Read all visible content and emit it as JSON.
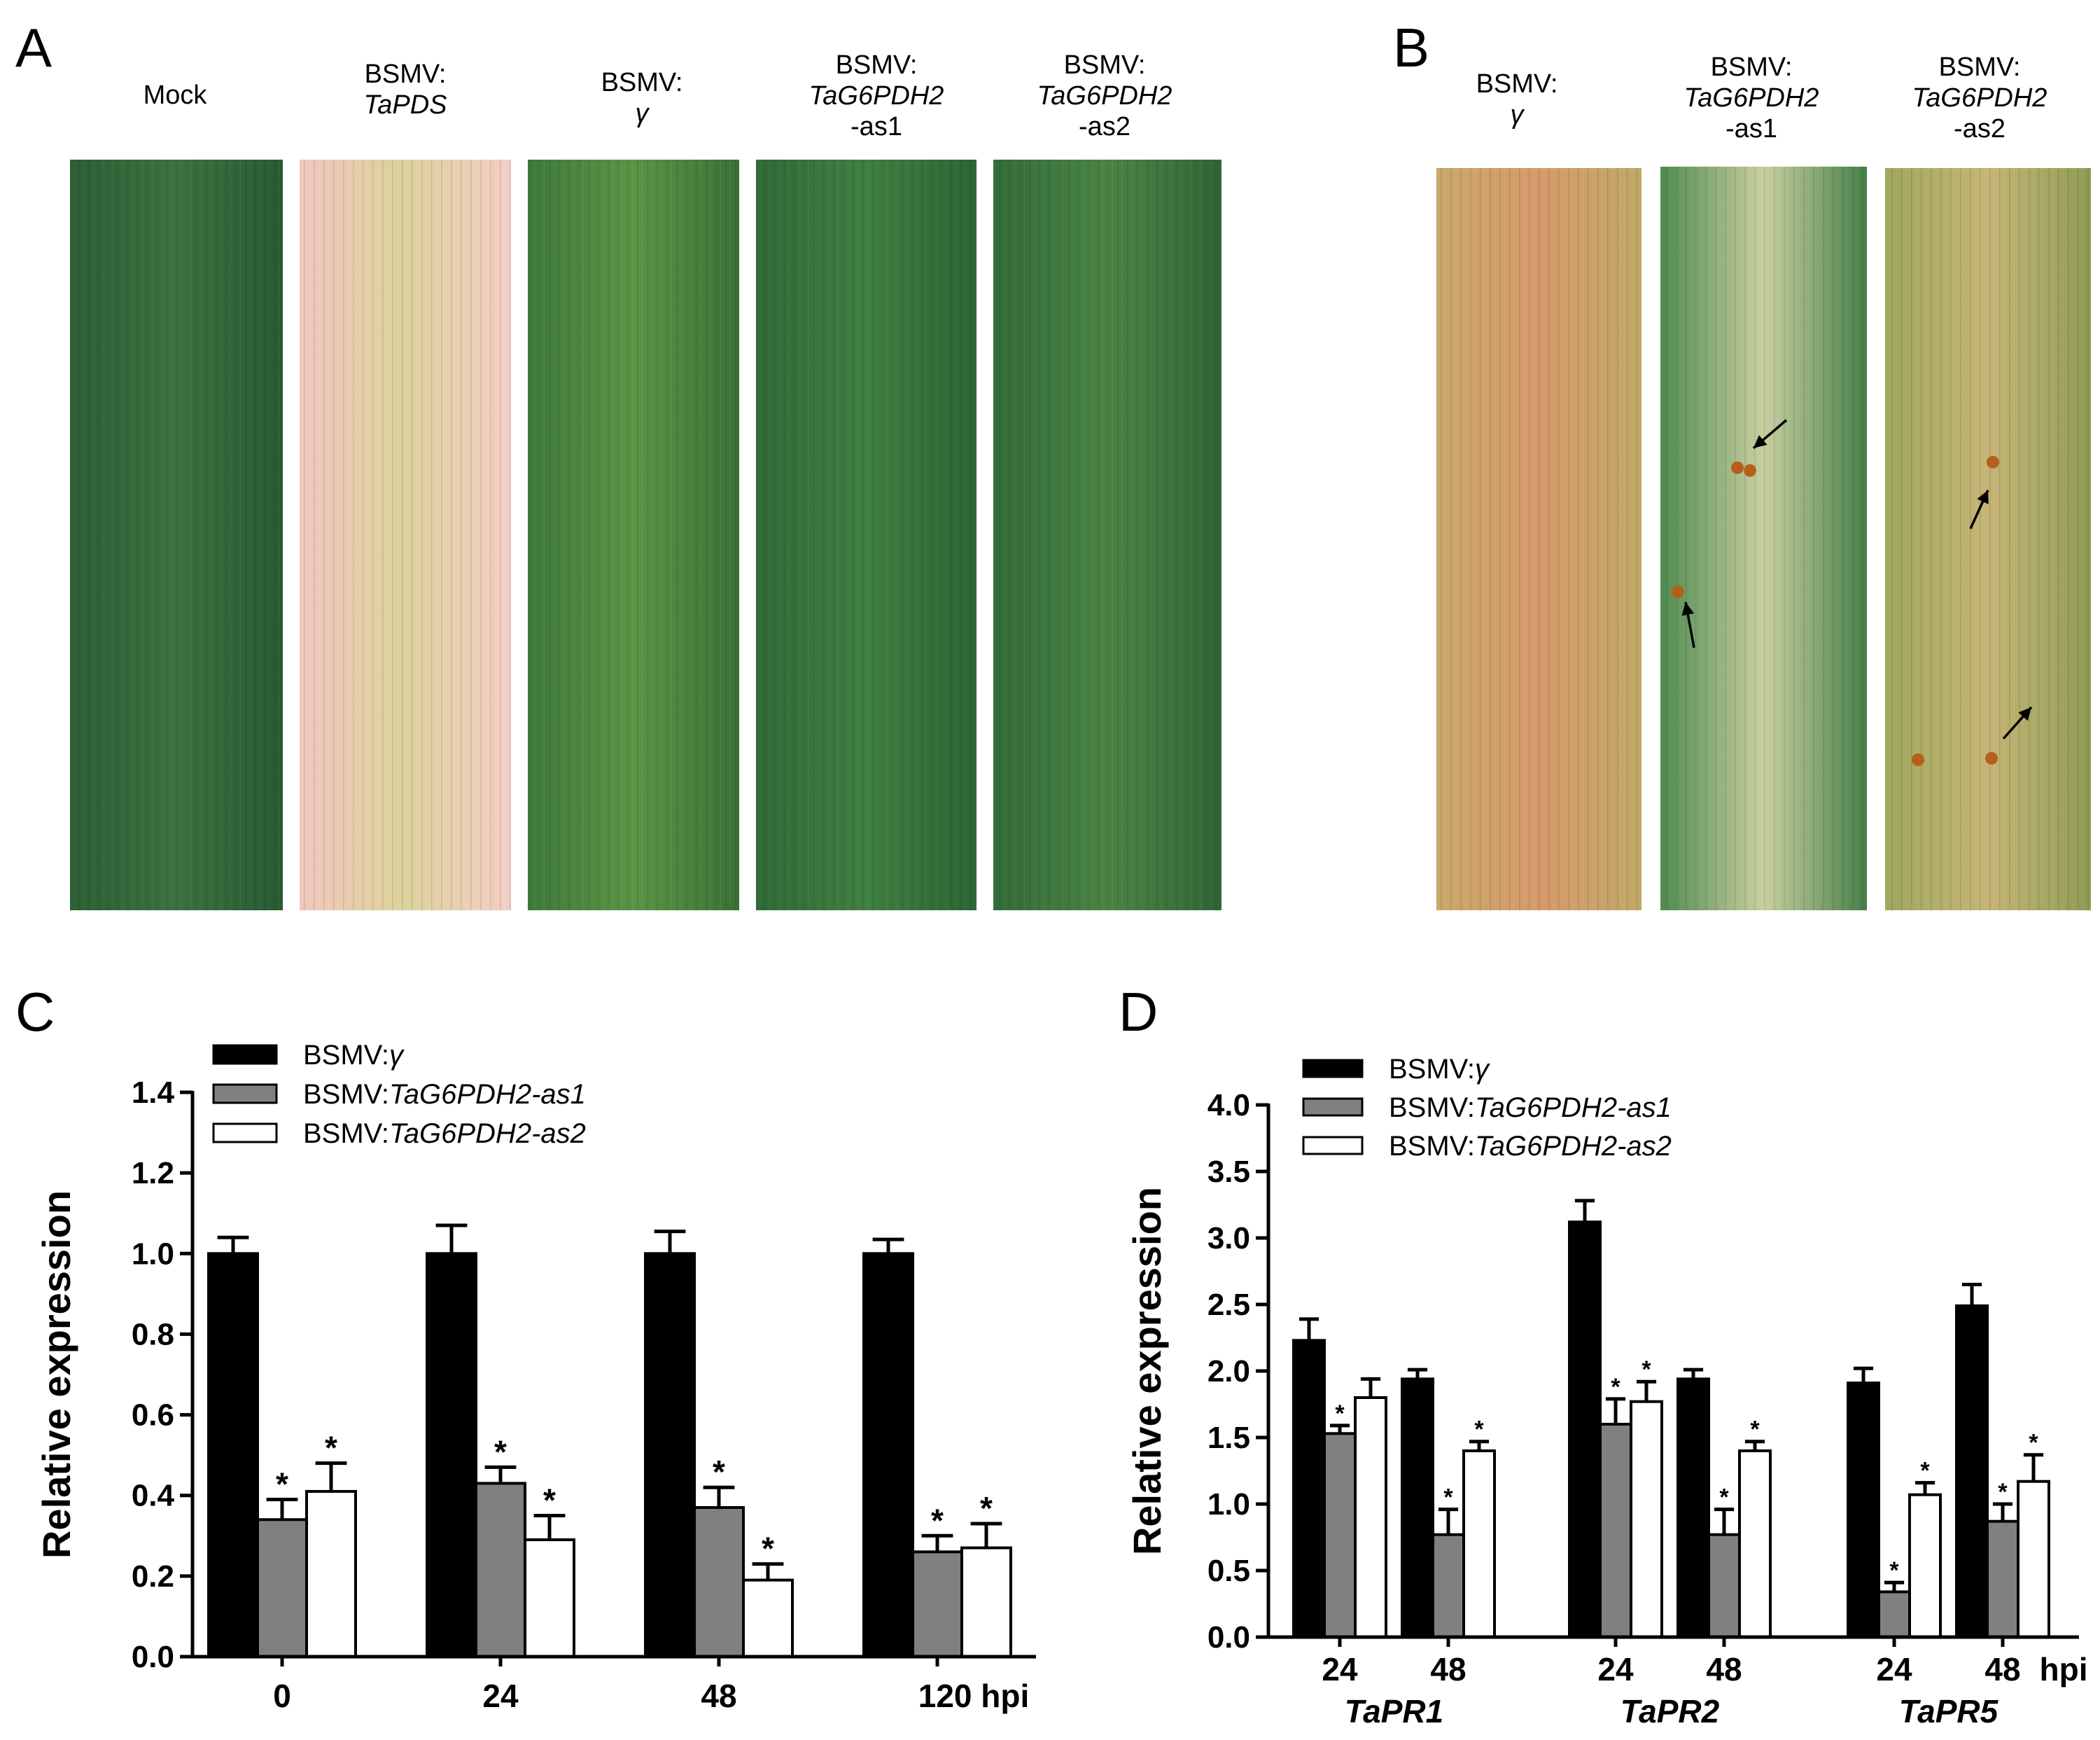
{
  "panels": {
    "A": {
      "label": "A",
      "photos": [
        {
          "lines": [
            {
              "t": "Mock",
              "it": false
            }
          ],
          "colors": [
            "#2d5e35",
            "#3b7240",
            "#2a5a33"
          ]
        },
        {
          "lines": [
            {
              "t": "BSMV:",
              "it": false
            },
            {
              "t": "TaPDS",
              "it": true
            }
          ],
          "colors": [
            "#f2c7bf",
            "#dcd29b",
            "#f4cec6"
          ]
        },
        {
          "lines": [
            {
              "t": "BSMV:",
              "it": false
            },
            {
              "t": "γ",
              "it": true
            }
          ],
          "colors": [
            "#3e7a3a",
            "#5b9445",
            "#3a7236"
          ]
        },
        {
          "lines": [
            {
              "t": "BSMV:",
              "it": false
            },
            {
              "t": "TaG6PDH2",
              "it": true
            },
            {
              "t": "-as1",
              "it": false
            }
          ],
          "colors": [
            "#2f6a37",
            "#3f7f41",
            "#2c6434"
          ]
        },
        {
          "lines": [
            {
              "t": "BSMV:",
              "it": false
            },
            {
              "t": "TaG6PDH2",
              "it": true
            },
            {
              "t": "-as2",
              "it": false
            }
          ],
          "colors": [
            "#336b39",
            "#4a8444",
            "#2f6536"
          ]
        }
      ]
    },
    "B": {
      "label": "B",
      "photos": [
        {
          "lines": [
            {
              "t": "BSMV:",
              "it": false
            },
            {
              "t": "γ",
              "it": true
            }
          ],
          "colors": [
            "#c9a86a",
            "#d69a6a",
            "#bfa868"
          ]
        },
        {
          "lines": [
            {
              "t": "BSMV:",
              "it": false
            },
            {
              "t": "TaG6PDH2",
              "it": true
            },
            {
              "t": "-as1",
              "it": false
            }
          ],
          "colors": [
            "#4f8a50",
            "#c9cfa0",
            "#467f48"
          ]
        },
        {
          "lines": [
            {
              "t": "BSMV:",
              "it": false
            },
            {
              "t": "TaG6PDH2",
              "it": true
            },
            {
              "t": "-as2",
              "it": false
            }
          ],
          "colors": [
            "#9fa75e",
            "#c6b576",
            "#8f9c55"
          ]
        }
      ]
    }
  },
  "chart_data": [
    {
      "panel": "C",
      "type": "bar",
      "ylabel": "Relative expression",
      "ylim": [
        0,
        1.4
      ],
      "yticks": [
        "0.0",
        "0.2",
        "0.4",
        "0.6",
        "0.8",
        "1.0",
        "1.2",
        "1.4"
      ],
      "categories": [
        "0",
        "24",
        "48",
        "120 hpi"
      ],
      "series": [
        {
          "name": "BSMV:γ",
          "name_parts": [
            {
              "t": "BSMV:",
              "it": false
            },
            {
              "t": "γ",
              "it": true
            }
          ],
          "color": "#000000",
          "values": [
            1.0,
            1.0,
            1.0,
            1.0
          ],
          "errors": [
            0.04,
            0.07,
            0.055,
            0.035
          ],
          "stars": [
            false,
            false,
            false,
            false
          ]
        },
        {
          "name": "BSMV:TaG6PDH2-as1",
          "name_parts": [
            {
              "t": "BSMV:",
              "it": false
            },
            {
              "t": "TaG6PDH2-as1",
              "it": true
            }
          ],
          "color": "#808080",
          "values": [
            0.34,
            0.43,
            0.37,
            0.26
          ],
          "errors": [
            0.05,
            0.04,
            0.05,
            0.04
          ],
          "stars": [
            true,
            true,
            true,
            true
          ]
        },
        {
          "name": "BSMV:TaG6PDH2-as2",
          "name_parts": [
            {
              "t": "BSMV:",
              "it": false
            },
            {
              "t": "TaG6PDH2-as2",
              "it": true
            }
          ],
          "color": "#ffffff",
          "values": [
            0.41,
            0.29,
            0.19,
            0.27
          ],
          "errors": [
            0.07,
            0.06,
            0.04,
            0.06
          ],
          "stars": [
            true,
            true,
            true,
            true
          ]
        }
      ],
      "legend": "top-left"
    },
    {
      "panel": "D",
      "type": "bar",
      "ylabel": "Relative expression",
      "ylim": [
        0,
        4.0
      ],
      "yticks": [
        "0.0",
        "0.5",
        "1.0",
        "1.5",
        "2.0",
        "2.5",
        "3.0",
        "3.5",
        "4.0"
      ],
      "groups": [
        {
          "gene": "TaPR1",
          "times": [
            "24",
            "48"
          ]
        },
        {
          "gene": "TaPR2",
          "times": [
            "24",
            "48"
          ]
        },
        {
          "gene": "TaPR5",
          "times": [
            "24",
            "48"
          ]
        }
      ],
      "hpi_label": "hpi",
      "series": [
        {
          "name": "BSMV:γ",
          "name_parts": [
            {
              "t": "BSMV:",
              "it": false
            },
            {
              "t": "γ",
              "it": true
            }
          ],
          "color": "#000000",
          "values": [
            2.23,
            1.94,
            3.12,
            1.94,
            1.91,
            2.49
          ],
          "errors": [
            0.16,
            0.07,
            0.16,
            0.07,
            0.11,
            0.16
          ],
          "stars": [
            false,
            false,
            false,
            false,
            false,
            false
          ]
        },
        {
          "name": "BSMV:TaG6PDH2-as1",
          "name_parts": [
            {
              "t": "BSMV:",
              "it": false
            },
            {
              "t": "TaG6PDH2-as1",
              "it": true
            }
          ],
          "color": "#808080",
          "values": [
            1.53,
            0.77,
            1.6,
            0.77,
            0.34,
            0.87
          ],
          "errors": [
            0.06,
            0.19,
            0.19,
            0.19,
            0.07,
            0.13
          ],
          "stars": [
            true,
            true,
            true,
            true,
            true,
            true
          ]
        },
        {
          "name": "BSMV:TaG6PDH2-as2",
          "name_parts": [
            {
              "t": "BSMV:",
              "it": false
            },
            {
              "t": "TaG6PDH2-as2",
              "it": true
            }
          ],
          "color": "#ffffff",
          "values": [
            1.8,
            1.4,
            1.77,
            1.4,
            1.07,
            1.17
          ],
          "errors": [
            0.14,
            0.07,
            0.15,
            0.07,
            0.09,
            0.2
          ],
          "stars": [
            false,
            true,
            true,
            true,
            true,
            true
          ]
        }
      ],
      "legend": "top-left"
    }
  ]
}
